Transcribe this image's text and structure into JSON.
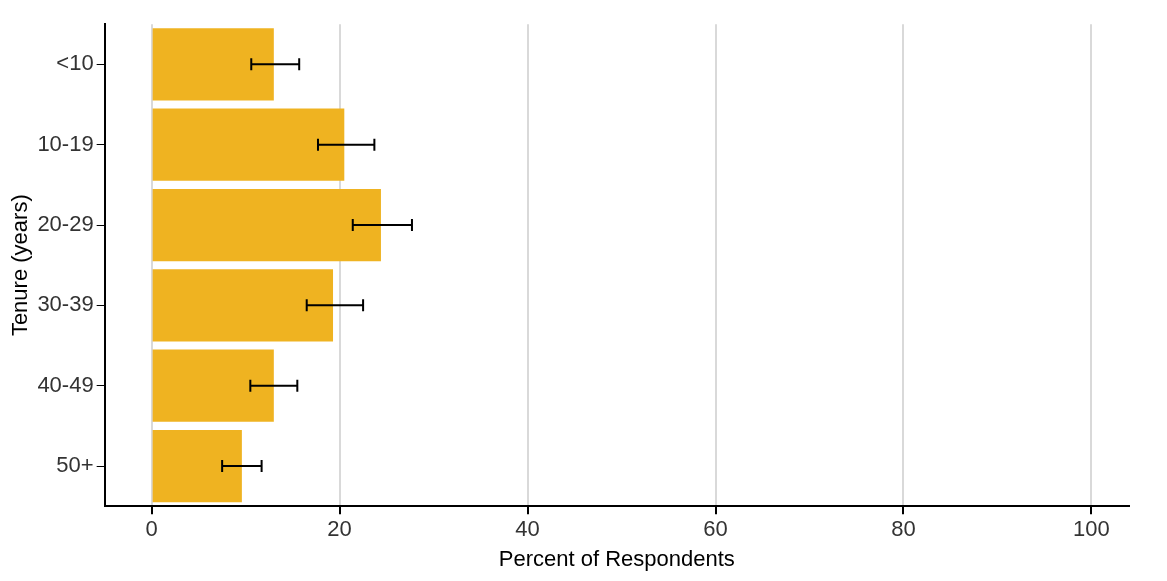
{
  "chart_data": {
    "type": "bar",
    "orientation": "horizontal",
    "xlabel": "Percent of Respondents",
    "ylabel": "Tenure (years)",
    "categories": [
      "<10",
      "10-19",
      "20-29",
      "30-39",
      "40-49",
      "50+"
    ],
    "values": [
      13.0,
      20.5,
      24.4,
      19.3,
      13.0,
      9.6
    ],
    "errors": [
      [
        10.6,
        15.7
      ],
      [
        17.7,
        23.7
      ],
      [
        21.4,
        27.7
      ],
      [
        16.5,
        22.5
      ],
      [
        10.5,
        15.5
      ],
      [
        7.5,
        11.7
      ]
    ],
    "color": "#efb321",
    "xlim": [
      -5,
      104
    ],
    "xticks": [
      0,
      20,
      40,
      60,
      80,
      100
    ],
    "grid": "x",
    "legend": false
  }
}
